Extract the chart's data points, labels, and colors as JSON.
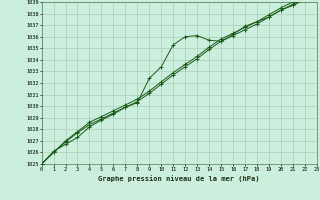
{
  "title": "Graphe pression niveau de la mer (hPa)",
  "bg_color": "#cceedd",
  "grid_color": "#aaccbb",
  "line_color": "#1a5c1a",
  "x_values": [
    0,
    1,
    2,
    3,
    4,
    5,
    6,
    7,
    8,
    9,
    10,
    11,
    12,
    13,
    14,
    15,
    16,
    17,
    18,
    19,
    20,
    21,
    22,
    23
  ],
  "line1": [
    1025.0,
    1026.1,
    1026.7,
    1027.3,
    1028.2,
    1028.8,
    1029.3,
    1029.9,
    1030.3,
    1032.4,
    1033.4,
    1035.3,
    1036.0,
    1036.1,
    1035.7,
    1035.6,
    1036.2,
    1036.9,
    1037.3,
    1037.7,
    1038.3,
    1038.7,
    1039.2,
    1039.5
  ],
  "line2": [
    1025.0,
    1026.0,
    1026.9,
    1027.7,
    1028.4,
    1028.9,
    1029.4,
    1029.9,
    1030.4,
    1031.1,
    1031.9,
    1032.7,
    1033.4,
    1034.1,
    1034.9,
    1035.6,
    1036.1,
    1036.6,
    1037.1,
    1037.7,
    1038.3,
    1038.8,
    1039.3,
    1039.5
  ],
  "line3": [
    1025.0,
    1026.0,
    1027.0,
    1027.8,
    1028.6,
    1029.1,
    1029.6,
    1030.1,
    1030.6,
    1031.3,
    1032.1,
    1032.9,
    1033.6,
    1034.3,
    1035.1,
    1035.8,
    1036.3,
    1036.8,
    1037.3,
    1037.9,
    1038.5,
    1039.0,
    1039.4,
    1039.6
  ],
  "ylim": [
    1025,
    1039
  ],
  "yticks": [
    1025,
    1026,
    1027,
    1028,
    1029,
    1030,
    1031,
    1032,
    1033,
    1034,
    1035,
    1036,
    1037,
    1038,
    1039
  ],
  "xlim": [
    0,
    23
  ],
  "xticks": [
    0,
    1,
    2,
    3,
    4,
    5,
    6,
    7,
    8,
    9,
    10,
    11,
    12,
    13,
    14,
    15,
    16,
    17,
    18,
    19,
    20,
    21,
    22,
    23
  ]
}
